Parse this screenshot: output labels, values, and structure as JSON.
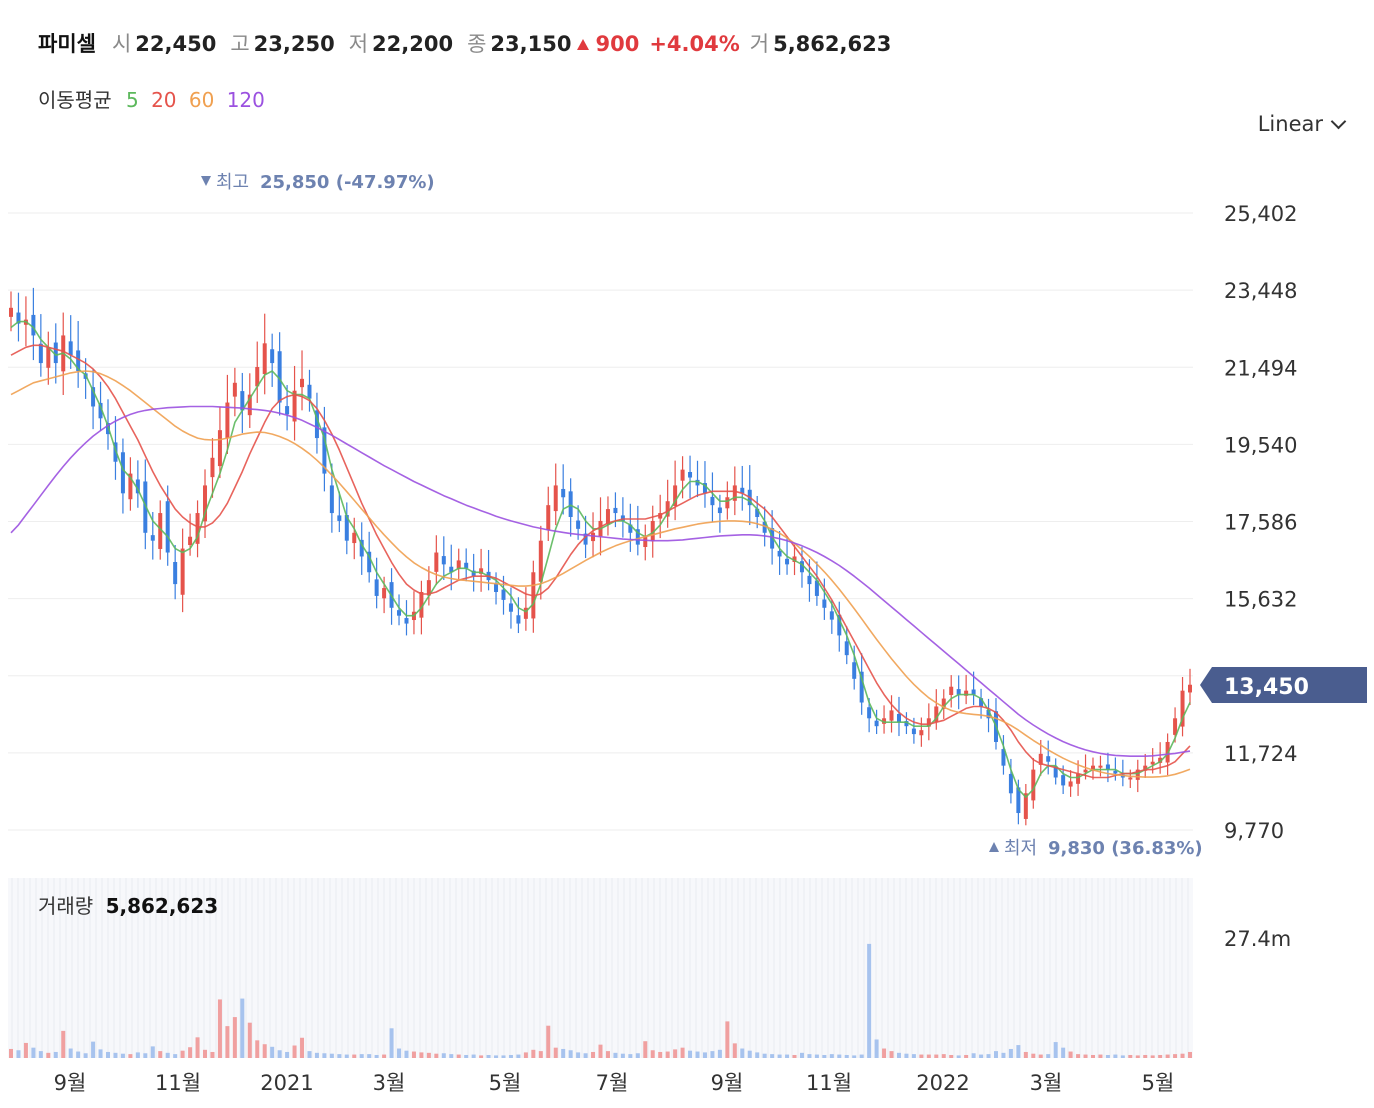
{
  "header": {
    "stock_name": "파미셀",
    "open_label": "시",
    "open": "22,450",
    "high_label": "고",
    "high": "23,250",
    "low_label": "저",
    "low": "22,200",
    "close_label": "종",
    "close": "23,150",
    "change": "900",
    "change_pct": "+4.04%",
    "volume_label": "거",
    "volume": "5,862,623"
  },
  "moving_average": {
    "label": "이동평균",
    "periods": [
      "5",
      "20",
      "60",
      "120"
    ],
    "colors": [
      "#5cb85c",
      "#e5534b",
      "#f0a050",
      "#9b51e0"
    ]
  },
  "scale_selector": {
    "value": "Linear"
  },
  "chart_data": {
    "type": "candlestick",
    "y_ticks": [
      "25,402",
      "23,448",
      "21,494",
      "19,540",
      "17,586",
      "15,632",
      "11,724",
      "9,770"
    ],
    "ylim": [
      9770,
      25402
    ],
    "x_ticks": [
      "9월",
      "11월",
      "2021",
      "3월",
      "5월",
      "7월",
      "9월",
      "11월",
      "2022",
      "3월",
      "5월"
    ],
    "current_price": "13,450",
    "max_marker": {
      "label": "최고",
      "value": "25,850 (-47.97%)"
    },
    "min_marker": {
      "label": "최저",
      "value": "9,830 (36.83%)"
    },
    "close_series": [
      23000,
      22600,
      22700,
      22300,
      21600,
      22000,
      21600,
      22300,
      21800,
      21400,
      21200,
      20500,
      20200,
      19800,
      19100,
      18300,
      18800,
      18300,
      17300,
      17100,
      17800,
      16800,
      16000,
      16900,
      17200,
      17800,
      18500,
      19200,
      19900,
      20600,
      21100,
      20400,
      20800,
      21500,
      22100,
      21600,
      20600,
      20300,
      20900,
      21200,
      20700,
      19700,
      18800,
      17800,
      17600,
      17100,
      17300,
      16700,
      16300,
      15700,
      15900,
      15400,
      15200,
      15000,
      15300,
      15800,
      16100,
      16800,
      16500,
      16300,
      16600,
      16400,
      16200,
      16400,
      16100,
      15800,
      15600,
      15300,
      15000,
      15400,
      16300,
      17100,
      18000,
      18500,
      18200,
      17700,
      17400,
      17000,
      17300,
      17600,
      17900,
      17800,
      17600,
      17300,
      17000,
      17200,
      17600,
      17800,
      18100,
      18500,
      18900,
      18700,
      18500,
      18300,
      18000,
      17800,
      18200,
      18500,
      18300,
      18000,
      17700,
      17300,
      16900,
      16700,
      16500,
      16700,
      16300,
      16000,
      15700,
      15400,
      15100,
      14700,
      14200,
      13600,
      13000,
      12600,
      12400,
      12600,
      12800,
      12500,
      12400,
      12200,
      12300,
      12600,
      12900,
      13100,
      13400,
      13200,
      13300,
      13200,
      12900,
      12600,
      12000,
      11400,
      10700,
      10200,
      10700,
      11300,
      11700,
      11500,
      11100,
      10900,
      11000,
      11200,
      11300,
      11400,
      11400,
      11300,
      11200,
      11100,
      11100,
      11300,
      11400,
      11500,
      11600,
      12000,
      12600,
      13300,
      13450
    ],
    "ma5": [
      22500,
      22650,
      22650,
      22500,
      22200,
      22000,
      21800,
      21850,
      21700,
      21450,
      21300,
      20900,
      20500,
      20000,
      19400,
      18900,
      18700,
      18400,
      18000,
      17600,
      17400,
      17200,
      16900,
      16800,
      16900,
      17200,
      17800,
      18300,
      18800,
      19400,
      20100,
      20400,
      20700,
      21000,
      21300,
      21400,
      21200,
      20900,
      20800,
      20800,
      20700,
      20200,
      19700,
      18900,
      18300,
      17700,
      17400,
      17000,
      16700,
      16300,
      16000,
      15700,
      15400,
      15200,
      15200,
      15400,
      15700,
      16000,
      16200,
      16300,
      16400,
      16400,
      16300,
      16300,
      16200,
      16100,
      15900,
      15700,
      15400,
      15300,
      15500,
      16000,
      16700,
      17400,
      17900,
      18000,
      17900,
      17600,
      17400,
      17400,
      17500,
      17600,
      17600,
      17500,
      17300,
      17200,
      17300,
      17500,
      17800,
      18100,
      18400,
      18600,
      18600,
      18500,
      18300,
      18100,
      18100,
      18200,
      18200,
      18100,
      17900,
      17600,
      17200,
      16900,
      16700,
      16600,
      16500,
      16300,
      16100,
      15800,
      15500,
      15100,
      14700,
      14200,
      13600,
      13000,
      12600,
      12500,
      12500,
      12500,
      12500,
      12400,
      12400,
      12400,
      12600,
      12900,
      13100,
      13200,
      13200,
      13200,
      13100,
      12800,
      12400,
      11900,
      11300,
      10800,
      10600,
      10800,
      11200,
      11400,
      11400,
      11200,
      11100,
      11100,
      11200,
      11300,
      11300,
      11300,
      11300,
      11200,
      11200,
      11200,
      11300,
      11400,
      11500,
      11700,
      12100,
      12600,
      13000
    ],
    "ma20": [
      21800,
      21900,
      22000,
      22050,
      22050,
      22000,
      21950,
      21900,
      21800,
      21700,
      21600,
      21450,
      21250,
      21000,
      20700,
      20350,
      20000,
      19650,
      19250,
      18850,
      18500,
      18200,
      17900,
      17700,
      17550,
      17450,
      17450,
      17550,
      17750,
      18050,
      18450,
      18850,
      19300,
      19700,
      20100,
      20450,
      20650,
      20750,
      20800,
      20750,
      20650,
      20450,
      20150,
      19800,
      19400,
      18950,
      18500,
      18050,
      17650,
      17250,
      16900,
      16550,
      16250,
      16000,
      15850,
      15750,
      15750,
      15800,
      15900,
      16000,
      16100,
      16150,
      16200,
      16200,
      16200,
      16150,
      16050,
      15950,
      15850,
      15750,
      15700,
      15750,
      15900,
      16150,
      16450,
      16750,
      17000,
      17200,
      17350,
      17450,
      17550,
      17600,
      17650,
      17650,
      17650,
      17650,
      17700,
      17750,
      17850,
      17950,
      18050,
      18150,
      18250,
      18300,
      18350,
      18350,
      18350,
      18350,
      18300,
      18200,
      18050,
      17900,
      17700,
      17450,
      17200,
      16950,
      16700,
      16450,
      16200,
      15900,
      15600,
      15250,
      14900,
      14550,
      14200,
      13850,
      13500,
      13200,
      12950,
      12750,
      12600,
      12500,
      12450,
      12450,
      12500,
      12550,
      12650,
      12750,
      12850,
      12900,
      12900,
      12850,
      12750,
      12550,
      12300,
      12000,
      11750,
      11550,
      11450,
      11400,
      11350,
      11300,
      11250,
      11200,
      11150,
      11100,
      11100,
      11100,
      11150,
      11200,
      11200,
      11250,
      11300,
      11300,
      11350,
      11400,
      11500,
      11700,
      11900
    ],
    "ma60": [
      20800,
      20900,
      21000,
      21100,
      21150,
      21200,
      21250,
      21300,
      21350,
      21380,
      21400,
      21380,
      21330,
      21250,
      21150,
      21030,
      20900,
      20750,
      20600,
      20450,
      20300,
      20150,
      20000,
      19880,
      19780,
      19700,
      19660,
      19650,
      19660,
      19700,
      19750,
      19800,
      19830,
      19850,
      19840,
      19800,
      19740,
      19660,
      19560,
      19440,
      19300,
      19140,
      18960,
      18760,
      18560,
      18340,
      18120,
      17900,
      17680,
      17460,
      17250,
      17050,
      16860,
      16690,
      16540,
      16420,
      16320,
      16240,
      16180,
      16140,
      16110,
      16090,
      16070,
      16050,
      16030,
      16010,
      15990,
      15970,
      15950,
      15950,
      15970,
      16010,
      16080,
      16170,
      16270,
      16380,
      16490,
      16600,
      16700,
      16800,
      16890,
      16970,
      17040,
      17100,
      17150,
      17200,
      17250,
      17300,
      17350,
      17400,
      17440,
      17480,
      17520,
      17550,
      17570,
      17590,
      17600,
      17600,
      17590,
      17570,
      17530,
      17470,
      17390,
      17290,
      17170,
      17030,
      16870,
      16700,
      16510,
      16310,
      16100,
      15870,
      15630,
      15380,
      15120,
      14860,
      14600,
      14350,
      14110,
      13880,
      13660,
      13460,
      13280,
      13120,
      12990,
      12880,
      12800,
      12750,
      12720,
      12700,
      12680,
      12650,
      12600,
      12520,
      12420,
      12300,
      12170,
      12040,
      11920,
      11800,
      11690,
      11590,
      11500,
      11420,
      11350,
      11290,
      11240,
      11200,
      11170,
      11150,
      11130,
      11120,
      11110,
      11110,
      11120,
      11140,
      11180,
      11240,
      11310
    ],
    "ma120": [
      17300,
      17500,
      17750,
      18000,
      18250,
      18500,
      18750,
      18980,
      19200,
      19400,
      19580,
      19750,
      19890,
      20020,
      20130,
      20220,
      20300,
      20360,
      20400,
      20430,
      20450,
      20470,
      20480,
      20490,
      20500,
      20500,
      20500,
      20500,
      20490,
      20480,
      20470,
      20460,
      20440,
      20420,
      20400,
      20370,
      20330,
      20280,
      20220,
      20150,
      20060,
      19970,
      19870,
      19770,
      19660,
      19550,
      19440,
      19330,
      19220,
      19110,
      19000,
      18900,
      18800,
      18700,
      18600,
      18510,
      18420,
      18330,
      18240,
      18160,
      18080,
      18000,
      17930,
      17860,
      17790,
      17720,
      17660,
      17600,
      17550,
      17500,
      17450,
      17410,
      17370,
      17340,
      17310,
      17280,
      17260,
      17240,
      17220,
      17200,
      17180,
      17160,
      17140,
      17130,
      17120,
      17110,
      17100,
      17100,
      17100,
      17110,
      17120,
      17140,
      17160,
      17180,
      17200,
      17220,
      17230,
      17240,
      17250,
      17250,
      17240,
      17220,
      17190,
      17150,
      17100,
      17040,
      16970,
      16890,
      16800,
      16700,
      16590,
      16470,
      16340,
      16200,
      16050,
      15900,
      15740,
      15580,
      15420,
      15260,
      15100,
      14940,
      14780,
      14620,
      14460,
      14300,
      14140,
      13980,
      13820,
      13660,
      13500,
      13340,
      13180,
      13020,
      12860,
      12700,
      12560,
      12430,
      12310,
      12200,
      12100,
      12010,
      11930,
      11860,
      11800,
      11750,
      11710,
      11680,
      11660,
      11650,
      11640,
      11640,
      11640,
      11650,
      11670,
      11690,
      11710,
      11740,
      11770
    ]
  },
  "volume_panel": {
    "label": "거래량",
    "value": "5,862,623",
    "y_tick": "27.4m",
    "ylim": [
      0,
      27.4
    ],
    "volumes_m": [
      2.1,
      1.8,
      3.5,
      2.4,
      1.6,
      1.2,
      1.4,
      6.3,
      2.2,
      1.5,
      1.1,
      3.8,
      2.0,
      1.4,
      1.2,
      1.0,
      0.9,
      1.3,
      1.1,
      2.7,
      1.6,
      1.2,
      0.9,
      1.7,
      2.5,
      4.8,
      1.9,
      1.4,
      13.6,
      7.4,
      9.5,
      13.8,
      8.2,
      4.1,
      3.2,
      2.6,
      1.8,
      1.4,
      2.9,
      4.7,
      1.6,
      1.2,
      1.1,
      1.0,
      0.9,
      0.8,
      0.8,
      0.9,
      0.9,
      0.7,
      0.8,
      6.9,
      2.2,
      1.7,
      1.5,
      1.3,
      1.2,
      1.0,
      1.1,
      0.9,
      0.8,
      0.7,
      0.8,
      0.6,
      0.7,
      0.6,
      0.6,
      0.7,
      0.8,
      1.3,
      1.9,
      1.6,
      7.5,
      2.4,
      2.1,
      1.8,
      1.3,
      1.1,
      1.4,
      3.1,
      1.6,
      1.2,
      1.0,
      0.9,
      1.1,
      3.9,
      1.8,
      1.4,
      1.5,
      2.0,
      2.4,
      1.7,
      1.5,
      1.3,
      1.6,
      1.9,
      8.5,
      3.4,
      2.2,
      1.7,
      1.3,
      1.0,
      0.9,
      0.8,
      0.8,
      0.7,
      1.2,
      0.9,
      0.8,
      0.7,
      0.9,
      0.8,
      0.7,
      0.6,
      0.8,
      26.5,
      4.3,
      2.2,
      1.6,
      1.2,
      1.0,
      0.9,
      0.8,
      0.8,
      0.8,
      0.9,
      0.7,
      0.6,
      0.7,
      1.1,
      0.8,
      0.9,
      1.6,
      1.2,
      2.1,
      3.0,
      1.4,
      1.0,
      0.8,
      0.9,
      3.7,
      2.4,
      1.5,
      0.9,
      0.8,
      0.7,
      0.8,
      0.7,
      0.8,
      0.6,
      0.7,
      0.6,
      0.7,
      0.6,
      0.7,
      0.8,
      0.9,
      1.0,
      1.4,
      1.1,
      1.0
    ]
  },
  "colors": {
    "up": "#e5534b",
    "down": "#3a7fe0",
    "vol_up": "#f0a0a0",
    "vol_down": "#a7c3ee",
    "marker_text": "#6d82b0",
    "price_tag": "#4a5d8f"
  }
}
